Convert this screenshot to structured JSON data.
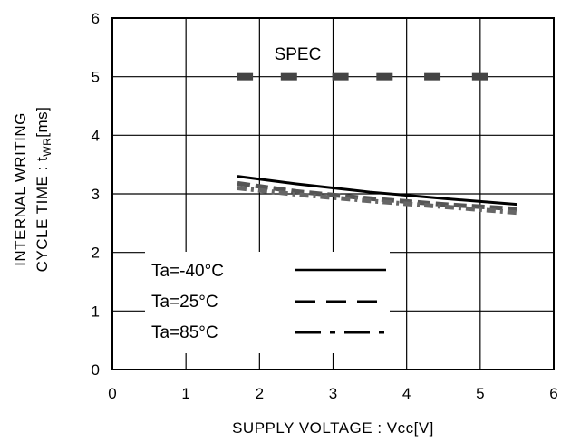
{
  "chart_data": {
    "type": "line",
    "title": "",
    "xlabel": "SUPPLY VOLTAGE : Vcc[V]",
    "ylabel": {
      "line1": "INTERNAL WRITING",
      "line2_prefix": "CYCLE TIME : t",
      "line2_sub": "WR",
      "line2_suffix": "[ms]"
    },
    "xlim": [
      0,
      6
    ],
    "ylim": [
      0,
      6
    ],
    "x_ticks": [
      "0",
      "1",
      "2",
      "3",
      "4",
      "5",
      "6"
    ],
    "y_ticks": [
      "0",
      "1",
      "2",
      "3",
      "4",
      "5",
      "6"
    ],
    "grid": true,
    "legend_position": "bottom-left",
    "annotations": [
      {
        "text": "SPEC",
        "x": 2.2,
        "y": 5.4
      }
    ],
    "spec": {
      "name": "SPEC",
      "x": [
        1.8,
        5.5
      ],
      "y": 5.0,
      "marker_x": [
        1.8,
        2.4,
        3.1,
        3.7,
        4.35,
        5.0
      ]
    },
    "series": [
      {
        "name": "Ta=-40°C",
        "style": "solid",
        "x": [
          1.7,
          2.5,
          3.5,
          4.5,
          5.5
        ],
        "y": [
          3.3,
          3.17,
          3.03,
          2.92,
          2.82
        ]
      },
      {
        "name": "Ta=25°C",
        "style": "dashed",
        "x": [
          1.7,
          2.5,
          3.5,
          4.5,
          5.5
        ],
        "y": [
          3.18,
          3.04,
          2.92,
          2.82,
          2.74
        ]
      },
      {
        "name": "Ta=85°C",
        "style": "dashdot",
        "x": [
          1.7,
          2.5,
          3.5,
          4.5,
          5.5
        ],
        "y": [
          3.1,
          2.99,
          2.88,
          2.78,
          2.68
        ]
      }
    ]
  }
}
